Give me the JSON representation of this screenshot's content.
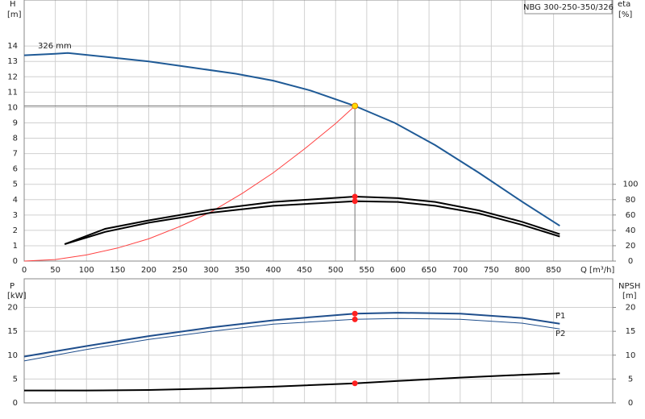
{
  "chart_data": [
    {
      "type": "line",
      "title": "NBG 300-250-350/326",
      "y_label": "H",
      "y_unit": "[m]",
      "y2_label": "eta",
      "y2_unit": "[%]",
      "x_label": "Q [m³/h]",
      "xlim": [
        0,
        945
      ],
      "ylim": [
        0,
        17
      ],
      "y2lim": [
        0,
        340
      ],
      "xticks": [
        0,
        50,
        100,
        150,
        200,
        250,
        300,
        350,
        400,
        450,
        500,
        550,
        600,
        650,
        700,
        750,
        800,
        850
      ],
      "yticks": [
        0,
        1,
        2,
        3,
        4,
        5,
        6,
        7,
        8,
        9,
        10,
        11,
        12,
        13,
        14
      ],
      "y2ticks": [
        0,
        20,
        40,
        60,
        80,
        100
      ],
      "grid": true,
      "series": [
        {
          "name": "326 mm",
          "color": "#1f5a96",
          "line": "thick",
          "x": [
            0,
            50,
            70,
            130,
            200,
            270,
            340,
            400,
            460,
            531,
            595,
            660,
            730,
            800,
            860
          ],
          "values": [
            13.4,
            13.5,
            13.55,
            13.3,
            13.0,
            12.6,
            12.2,
            11.75,
            11.1,
            10.1,
            9.0,
            7.55,
            5.75,
            3.85,
            2.3
          ]
        },
        {
          "color": "#ff4040",
          "line": "thin",
          "x": [
            0,
            50,
            100,
            150,
            200,
            250,
            300,
            350,
            400,
            450,
            500,
            531
          ],
          "values": [
            0,
            0.1,
            0.4,
            0.85,
            1.45,
            2.25,
            3.2,
            4.4,
            5.75,
            7.3,
            8.95,
            10.1
          ]
        },
        {
          "color": "#000000",
          "line": "thick",
          "axis": "y2",
          "x": [
            65,
            130,
            200,
            300,
            400,
            531,
            600,
            660,
            730,
            800,
            860
          ],
          "values": [
            22,
            42,
            53,
            67,
            77,
            84,
            82,
            77,
            66,
            51,
            35
          ]
        },
        {
          "color": "#000000",
          "line": "thick",
          "axis": "y2",
          "x": [
            65,
            130,
            200,
            300,
            400,
            531,
            600,
            660,
            730,
            800,
            860
          ],
          "values": [
            22,
            38,
            50,
            63,
            72,
            78,
            77,
            72,
            62,
            47,
            32
          ]
        }
      ],
      "markers": [
        {
          "x": 531,
          "y": 10.1,
          "color": "#ffdd00",
          "guide": true
        },
        {
          "x": 531,
          "y": 84,
          "color": "#ff2020",
          "axis": "y2"
        },
        {
          "x": 531,
          "y": 78,
          "color": "#ff2020",
          "axis": "y2"
        }
      ]
    },
    {
      "type": "line",
      "y_label": "P",
      "y_unit": "[kW]",
      "y2_label": "NPSH",
      "y2_unit": "[m]",
      "xlim": [
        0,
        945
      ],
      "ylim": [
        0,
        26
      ],
      "y2lim": [
        0,
        26
      ],
      "yticks": [
        0,
        5,
        10,
        15,
        20
      ],
      "y2ticks": [
        0,
        5,
        10,
        15,
        20
      ],
      "grid": true,
      "x_grid": true,
      "series": [
        {
          "name": "P1",
          "color": "#1f4e8c",
          "line": "thick",
          "x": [
            0,
            100,
            200,
            300,
            400,
            531,
            600,
            700,
            800,
            860
          ],
          "values": [
            9.7,
            11.9,
            14.0,
            15.8,
            17.3,
            18.7,
            18.9,
            18.7,
            17.8,
            16.6
          ]
        },
        {
          "name": "P2",
          "color": "#1f4e8c",
          "line": "thin",
          "x": [
            0,
            100,
            200,
            300,
            400,
            531,
            600,
            700,
            800,
            860
          ],
          "values": [
            8.8,
            11.2,
            13.3,
            15.0,
            16.5,
            17.5,
            17.7,
            17.5,
            16.7,
            15.5
          ]
        },
        {
          "color": "#000000",
          "line": "thick",
          "axis": "y2",
          "x": [
            0,
            100,
            200,
            300,
            400,
            531,
            600,
            700,
            800,
            860
          ],
          "values": [
            2.6,
            2.6,
            2.7,
            3.0,
            3.4,
            4.1,
            4.6,
            5.3,
            5.9,
            6.2
          ]
        }
      ],
      "markers": [
        {
          "x": 531,
          "y": 18.7,
          "color": "#ff2020"
        },
        {
          "x": 531,
          "y": 17.5,
          "color": "#ff2020"
        },
        {
          "x": 531,
          "y": 4.1,
          "color": "#ff2020",
          "axis": "y2"
        }
      ]
    }
  ]
}
